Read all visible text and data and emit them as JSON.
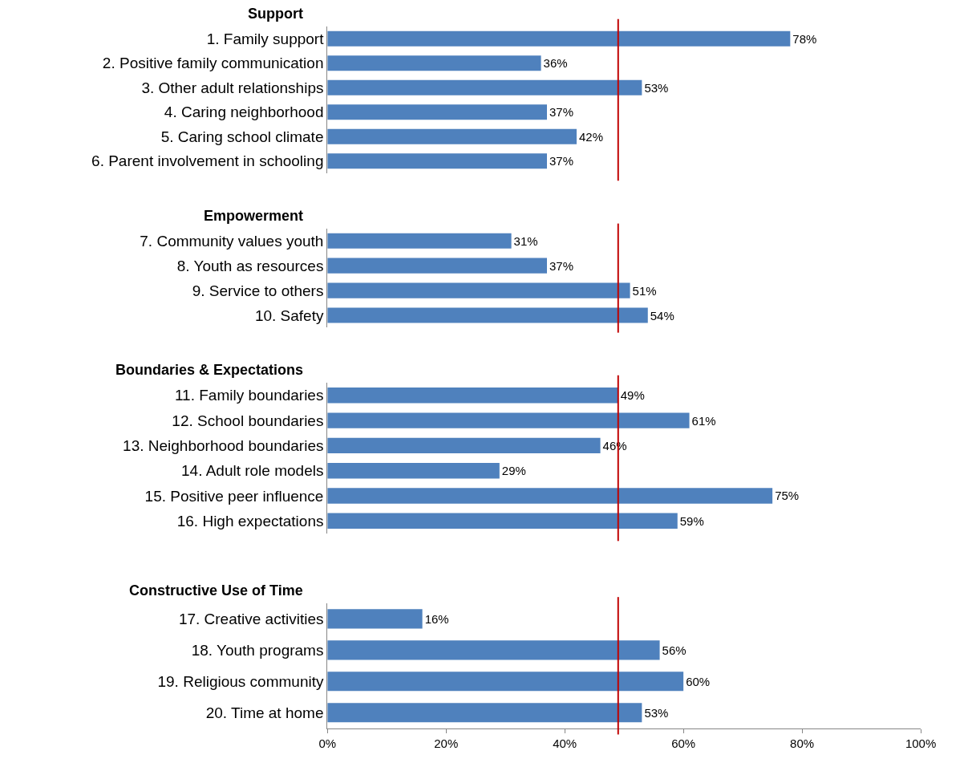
{
  "chart_data": [
    {
      "type": "bar",
      "orientation": "horizontal",
      "title": "Support",
      "categories": [
        "1. Family support",
        "2. Positive family communication",
        "3. Other adult relationships",
        "4. Caring neighborhood",
        "5. Caring school climate",
        "6. Parent involvement in schooling"
      ],
      "values": [
        78,
        36,
        53,
        37,
        42,
        37
      ],
      "value_labels": [
        "78%",
        "36%",
        "53%",
        "37%",
        "42%",
        "37%"
      ],
      "color": "#4f81bd",
      "xlim": [
        0,
        100
      ],
      "ref_lines": [
        {
          "axis": "x",
          "value": 49,
          "color": "#c00000"
        }
      ],
      "tick_labels": "y"
    },
    {
      "type": "bar",
      "orientation": "horizontal",
      "title": "Empowerment",
      "categories": [
        "7. Community values youth",
        "8. Youth as resources",
        "9. Service to others",
        "10. Safety"
      ],
      "values": [
        31,
        37,
        51,
        54
      ],
      "value_labels": [
        "31%",
        "37%",
        "51%",
        "54%"
      ],
      "color": "#4f81bd",
      "xlim": [
        0,
        100
      ],
      "ref_lines": [
        {
          "axis": "x",
          "value": 49,
          "color": "#c00000"
        }
      ],
      "tick_labels": "y"
    },
    {
      "type": "bar",
      "orientation": "horizontal",
      "title": "Boundaries & Expectations",
      "categories": [
        "11. Family boundaries",
        "12. School boundaries",
        "13. Neighborhood boundaries",
        "14. Adult role models",
        "15. Positive peer influence",
        "16. High expectations"
      ],
      "values": [
        49,
        61,
        46,
        29,
        75,
        59
      ],
      "value_labels": [
        "49%",
        "61%",
        "46%",
        "29%",
        "75%",
        "59%"
      ],
      "color": "#4f81bd",
      "xlim": [
        0,
        100
      ],
      "ref_lines": [
        {
          "axis": "x",
          "value": 49,
          "color": "#c00000"
        }
      ],
      "tick_labels": "y"
    },
    {
      "type": "bar",
      "orientation": "horizontal",
      "title": "Constructive Use of Time",
      "categories": [
        "17. Creative activities",
        "18. Youth programs",
        "19. Religious community",
        "20. Time at home"
      ],
      "values": [
        16,
        56,
        60,
        53
      ],
      "value_labels": [
        "16%",
        "56%",
        "60%",
        "53%"
      ],
      "color": "#4f81bd",
      "xlim": [
        0,
        100
      ],
      "xticks": [
        {
          "value": 0,
          "label": "0%"
        },
        {
          "value": 20,
          "label": "20%"
        },
        {
          "value": 40,
          "label": "40%"
        },
        {
          "value": 60,
          "label": "60%"
        },
        {
          "value": 80,
          "label": "80%"
        },
        {
          "value": 100,
          "label": "100%"
        }
      ],
      "ref_lines": [
        {
          "axis": "x",
          "value": 49,
          "color": "#c00000"
        }
      ]
    }
  ]
}
